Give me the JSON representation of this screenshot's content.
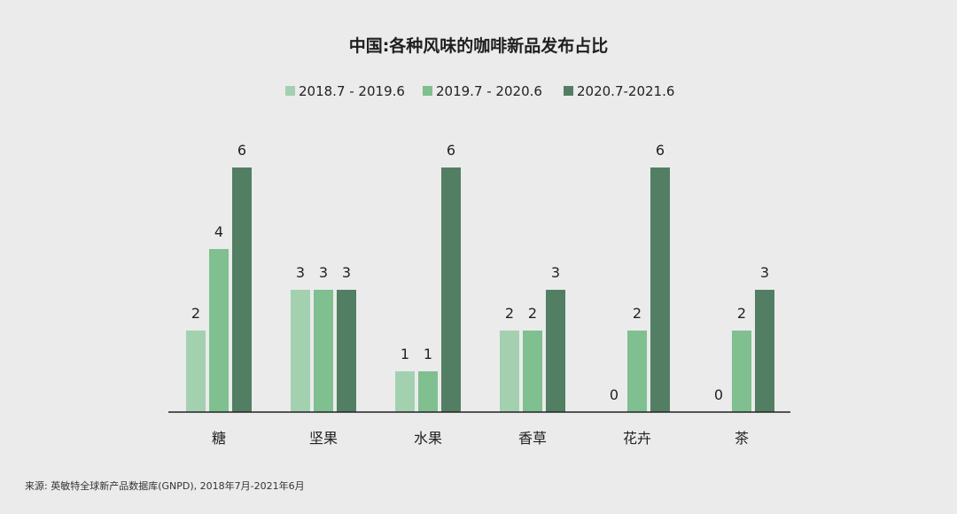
{
  "chart_data": {
    "type": "bar",
    "title": "中国:各种风味的咖啡新品发布占比",
    "categories": [
      "糖",
      "坚果",
      "水果",
      "香草",
      "花卉",
      "茶"
    ],
    "series": [
      {
        "name": "2018.7 - 2019.6",
        "color": "#a3d1b0",
        "values": [
          2,
          3,
          1,
          2,
          0,
          0
        ]
      },
      {
        "name": "2019.7 - 2020.6",
        "color": "#7fbf90",
        "values": [
          4,
          3,
          1,
          2,
          2,
          2
        ]
      },
      {
        "name": "2020.7-2021.6",
        "color": "#527f63",
        "values": [
          6,
          3,
          6,
          3,
          6,
          3
        ]
      }
    ],
    "ylim": [
      0,
      6
    ],
    "xlabel": "",
    "ylabel": "",
    "grid": false,
    "legend_position": "top-center",
    "source": "来源: 英敏特全球新产品数据库(GNPD), 2018年7月-2021年6月"
  }
}
